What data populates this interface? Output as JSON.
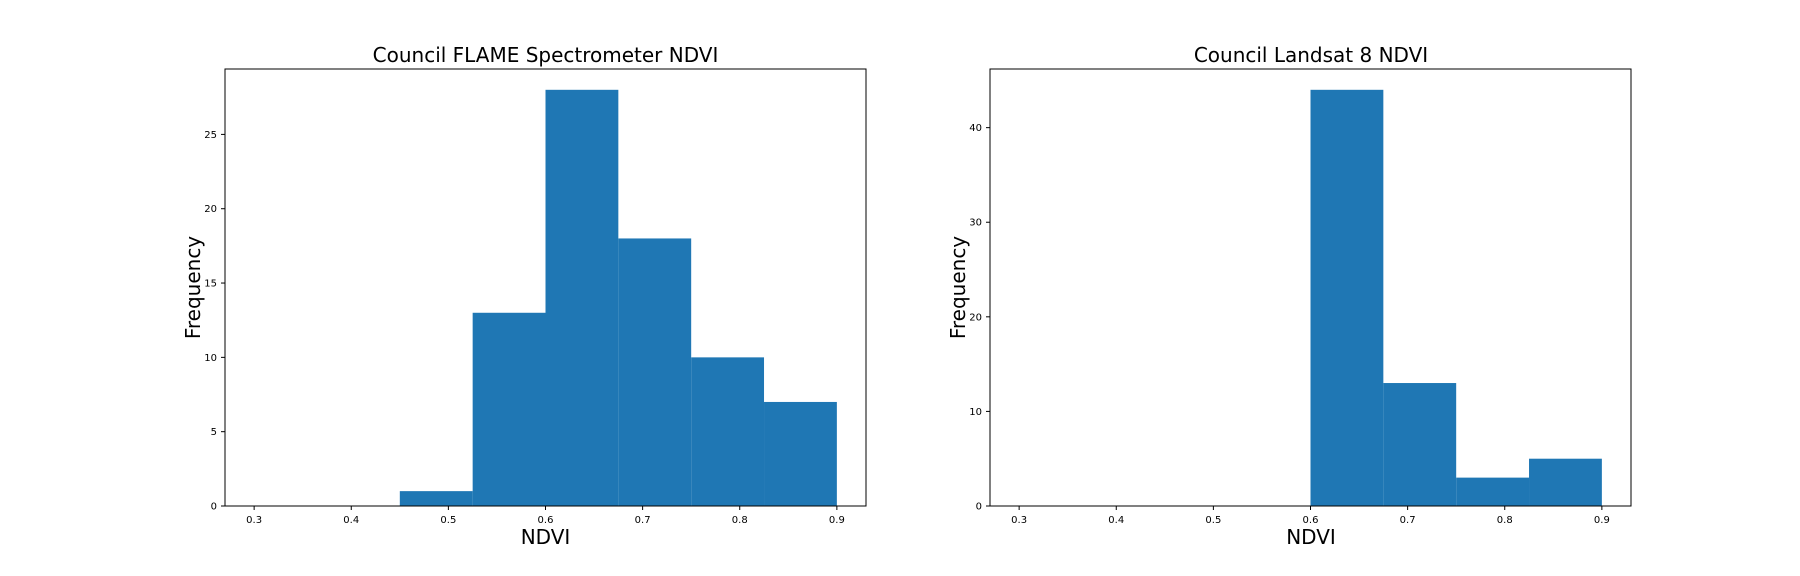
{
  "chart_data": [
    {
      "type": "bar",
      "title": "Council FLAME Spectrometer NDVI",
      "xlabel": "NDVI",
      "ylabel": "Frequency",
      "xlim": [
        0.27,
        0.93
      ],
      "ylim": [
        0,
        29.4
      ],
      "xticks": [
        0.3,
        0.4,
        0.5,
        0.6,
        0.7,
        0.8,
        0.9
      ],
      "yticks": [
        0,
        5,
        10,
        15,
        20,
        25
      ],
      "bin_edges": [
        0.45,
        0.525,
        0.6,
        0.675,
        0.75,
        0.825,
        0.9
      ],
      "values": [
        1,
        13,
        28,
        18,
        10,
        7
      ],
      "color": "#1f77b4",
      "grid": false
    },
    {
      "type": "bar",
      "title": "Council Landsat 8 NDVI",
      "xlabel": "NDVI",
      "ylabel": "Frequency",
      "xlim": [
        0.27,
        0.93
      ],
      "ylim": [
        0,
        46.2
      ],
      "xticks": [
        0.3,
        0.4,
        0.5,
        0.6,
        0.7,
        0.8,
        0.9
      ],
      "yticks": [
        0,
        10,
        20,
        30,
        40
      ],
      "bin_edges": [
        0.6,
        0.675,
        0.75,
        0.825,
        0.9
      ],
      "values": [
        44,
        13,
        3,
        5
      ],
      "color": "#1f77b4",
      "grid": false
    }
  ]
}
